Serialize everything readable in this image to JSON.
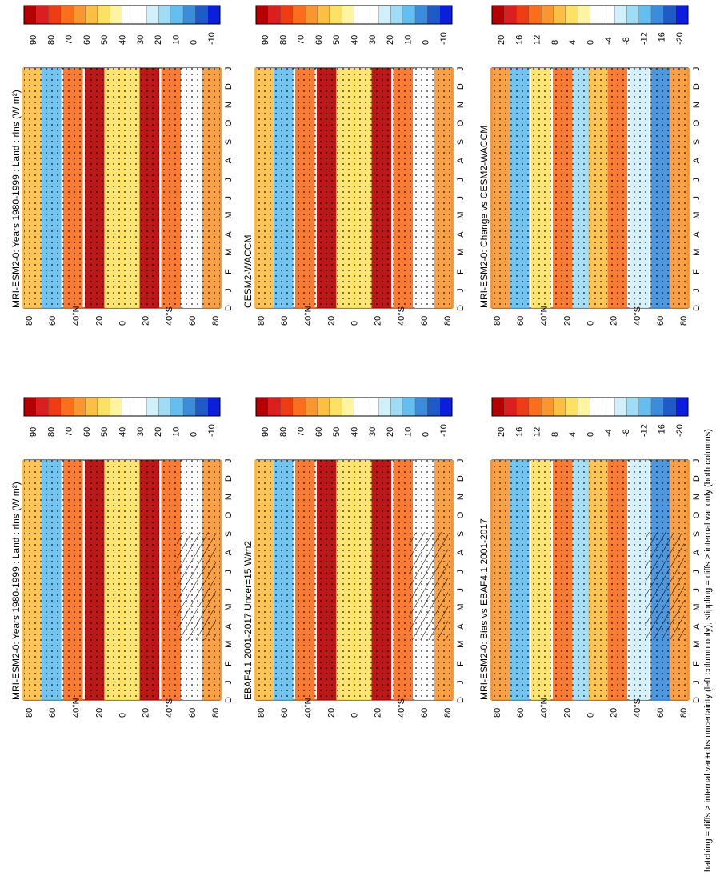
{
  "figure": {
    "note": "hatching = diffs > internal var+obs uncertainty (left column only); stippling = diffs > internal var only (both columns)"
  },
  "chart_data": [
    {
      "type": "heatmap",
      "title": "MRI-ESM2-0: Years 1980-1999 : Land : rlns (W m²)",
      "x_ticks": [
        "D",
        "J",
        "F",
        "M",
        "A",
        "M",
        "J",
        "J",
        "A",
        "S",
        "O",
        "N",
        "D",
        "J"
      ],
      "y_ticks": [
        "80",
        "60",
        "40°N",
        "20",
        "0",
        "20",
        "40°S",
        "60",
        "80"
      ],
      "colorbar": {
        "labels": [
          "90",
          "80",
          "70",
          "60",
          "50",
          "40",
          "30",
          "20",
          "10",
          "0",
          "-10"
        ],
        "colors": [
          "#b40000",
          "#dc1e1e",
          "#f03c14",
          "#fa6e1e",
          "#fa9632",
          "#fdbe46",
          "#fde164",
          "#fff5a0",
          "#ffffff",
          "#ffffff",
          "#d2f0fa",
          "#a0dcf5",
          "#64bef0",
          "#3c8cdc",
          "#1e5ac8",
          "#0a1edc"
        ]
      },
      "overlay": {
        "stippling": true,
        "hatching": true
      }
    },
    {
      "type": "heatmap",
      "title": "MRI-ESM2-0: Years 1980-1999 : Land : rlns (W m²)",
      "x_ticks": [
        "D",
        "J",
        "F",
        "M",
        "A",
        "M",
        "J",
        "J",
        "A",
        "S",
        "O",
        "N",
        "D",
        "J"
      ],
      "y_ticks": [
        "80",
        "60",
        "40°N",
        "20",
        "0",
        "20",
        "40°S",
        "60",
        "80"
      ],
      "colorbar": {
        "labels": [
          "90",
          "80",
          "70",
          "60",
          "50",
          "40",
          "30",
          "20",
          "10",
          "0",
          "-10"
        ],
        "colors": [
          "#b40000",
          "#dc1e1e",
          "#f03c14",
          "#fa6e1e",
          "#fa9632",
          "#fdbe46",
          "#fde164",
          "#fff5a0",
          "#ffffff",
          "#ffffff",
          "#d2f0fa",
          "#a0dcf5",
          "#64bef0",
          "#3c8cdc",
          "#1e5ac8",
          "#0a1edc"
        ]
      },
      "overlay": {
        "stippling": true,
        "hatching": false
      }
    },
    {
      "type": "heatmap",
      "title": "EBAF4.1 2001-2017 Uncer=15 W/m2",
      "x_ticks": [
        "D",
        "J",
        "F",
        "M",
        "A",
        "M",
        "J",
        "J",
        "A",
        "S",
        "O",
        "N",
        "D",
        "J"
      ],
      "y_ticks": [
        "80",
        "60",
        "40°N",
        "20",
        "0",
        "20",
        "40°S",
        "60",
        "80"
      ],
      "colorbar": {
        "labels": [
          "90",
          "80",
          "70",
          "60",
          "50",
          "40",
          "30",
          "20",
          "10",
          "0",
          "-10"
        ],
        "colors": [
          "#b40000",
          "#dc1e1e",
          "#f03c14",
          "#fa6e1e",
          "#fa9632",
          "#fdbe46",
          "#fde164",
          "#fff5a0",
          "#ffffff",
          "#ffffff",
          "#d2f0fa",
          "#a0dcf5",
          "#64bef0",
          "#3c8cdc",
          "#1e5ac8",
          "#0a1edc"
        ]
      },
      "overlay": {
        "stippling": true,
        "hatching": true
      }
    },
    {
      "type": "heatmap",
      "title": "CESM2-WACCM",
      "x_ticks": [
        "D",
        "J",
        "F",
        "M",
        "A",
        "M",
        "J",
        "J",
        "A",
        "S",
        "O",
        "N",
        "D",
        "J"
      ],
      "y_ticks": [
        "80",
        "60",
        "40°N",
        "20",
        "0",
        "20",
        "40°S",
        "60",
        "80"
      ],
      "colorbar": {
        "labels": [
          "90",
          "80",
          "70",
          "60",
          "50",
          "40",
          "30",
          "20",
          "10",
          "0",
          "-10"
        ],
        "colors": [
          "#b40000",
          "#dc1e1e",
          "#f03c14",
          "#fa6e1e",
          "#fa9632",
          "#fdbe46",
          "#fde164",
          "#fff5a0",
          "#ffffff",
          "#ffffff",
          "#d2f0fa",
          "#a0dcf5",
          "#64bef0",
          "#3c8cdc",
          "#1e5ac8",
          "#0a1edc"
        ]
      },
      "overlay": {
        "stippling": true,
        "hatching": false
      }
    },
    {
      "type": "heatmap",
      "title": "MRI-ESM2-0: Bias vs EBAF4.1 2001-2017",
      "x_ticks": [
        "D",
        "J",
        "F",
        "M",
        "A",
        "M",
        "J",
        "J",
        "A",
        "S",
        "O",
        "N",
        "D",
        "J"
      ],
      "y_ticks": [
        "80",
        "60",
        "40°N",
        "20",
        "0",
        "20",
        "40°S",
        "60",
        "80"
      ],
      "colorbar": {
        "labels": [
          "20",
          "16",
          "12",
          "8",
          "4",
          "0",
          "-4",
          "-8",
          "-12",
          "-16",
          "-20"
        ],
        "colors": [
          "#b40000",
          "#dc1e1e",
          "#f03c14",
          "#fa6e1e",
          "#fa9632",
          "#fdbe46",
          "#fde164",
          "#fff5a0",
          "#ffffff",
          "#ffffff",
          "#d2f0fa",
          "#a0dcf5",
          "#64bef0",
          "#3c8cdc",
          "#1e5ac8",
          "#0a1edc"
        ]
      },
      "overlay": {
        "stippling": true,
        "hatching": true
      }
    },
    {
      "type": "heatmap",
      "title": "MRI-ESM2-0: Change vs CESM2-WACCM",
      "x_ticks": [
        "D",
        "J",
        "F",
        "M",
        "A",
        "M",
        "J",
        "J",
        "A",
        "S",
        "O",
        "N",
        "D",
        "J"
      ],
      "y_ticks": [
        "80",
        "60",
        "40°N",
        "20",
        "0",
        "20",
        "40°S",
        "60",
        "80"
      ],
      "colorbar": {
        "labels": [
          "20",
          "16",
          "12",
          "8",
          "4",
          "0",
          "-4",
          "-8",
          "-12",
          "-16",
          "-20"
        ],
        "colors": [
          "#b40000",
          "#dc1e1e",
          "#f03c14",
          "#fa6e1e",
          "#fa9632",
          "#fdbe46",
          "#fde164",
          "#fff5a0",
          "#ffffff",
          "#ffffff",
          "#d2f0fa",
          "#a0dcf5",
          "#64bef0",
          "#3c8cdc",
          "#1e5ac8",
          "#0a1edc"
        ]
      },
      "overlay": {
        "stippling": true,
        "hatching": false
      }
    }
  ]
}
